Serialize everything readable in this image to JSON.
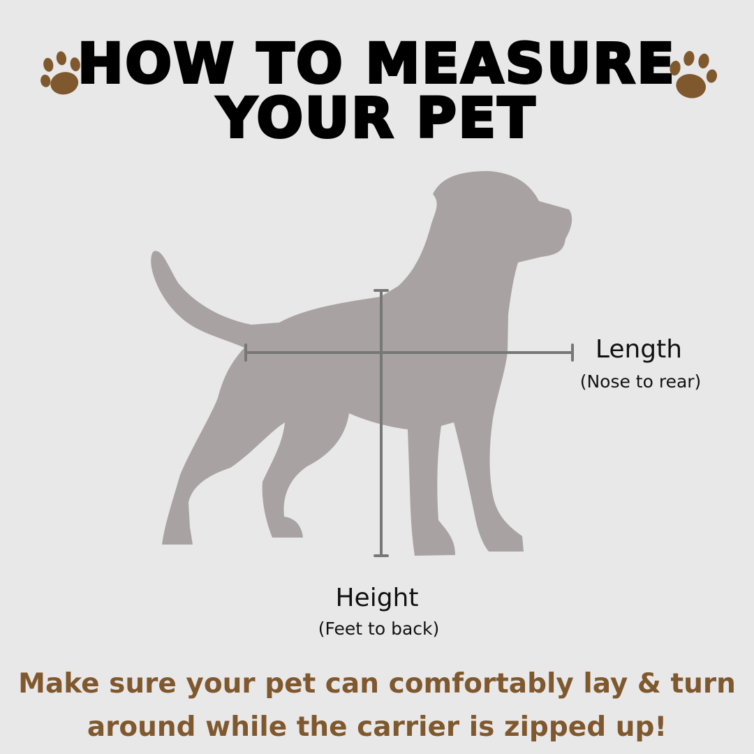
{
  "title": {
    "line1": "HOW TO MEASURE",
    "line2": "YOUR PET"
  },
  "icons": {
    "paw": "paw-print-icon",
    "dog": "dog-silhouette"
  },
  "colors": {
    "background": "#e8e8e8",
    "paw": "#80582e",
    "dog": "#a8a3a2",
    "measure_line": "#777777",
    "note": "#80582e"
  },
  "length": {
    "label": "Length",
    "sub": "(Nose to rear)"
  },
  "height": {
    "label": "Height",
    "sub": "(Feet to back)"
  },
  "note": {
    "line1": "Make sure your pet can comfortably lay & turn",
    "line2": "around while the carrier is zipped up!"
  }
}
